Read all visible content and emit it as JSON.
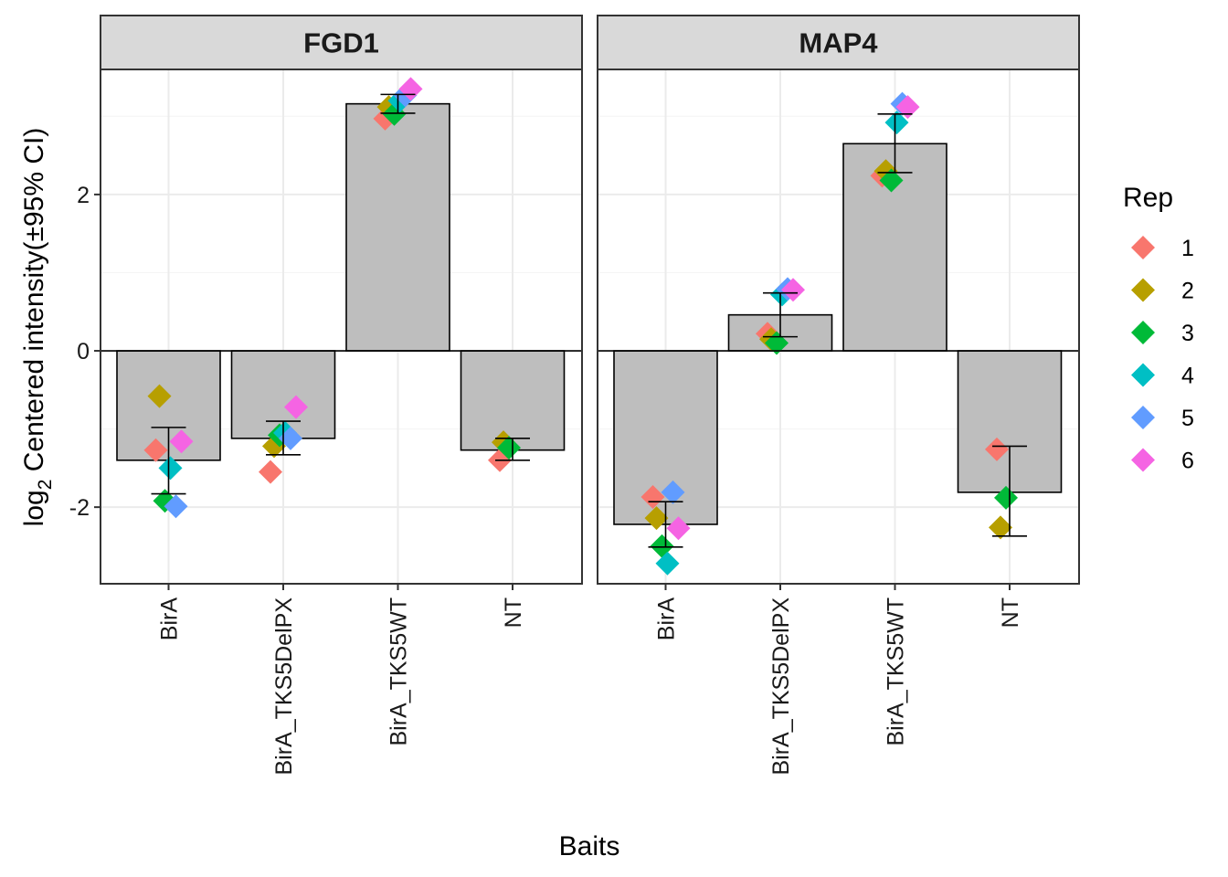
{
  "chart_data": {
    "type": "bar",
    "panels": [
      {
        "title": "FGD1",
        "categories": [
          "BirA",
          "BirA_TKS5DelPX",
          "BirA_TKS5WT",
          "NT"
        ],
        "bar_values": [
          -1.4,
          -1.12,
          3.16,
          -1.27
        ],
        "ci_low": [
          -1.83,
          -1.33,
          3.04,
          -1.4
        ],
        "ci_high": [
          -0.98,
          -0.9,
          3.28,
          -1.12
        ],
        "points": [
          {
            "category": "BirA",
            "rep": "1",
            "y": -1.27
          },
          {
            "category": "BirA",
            "rep": "2",
            "y": -0.58
          },
          {
            "category": "BirA",
            "rep": "3",
            "y": -1.92
          },
          {
            "category": "BirA",
            "rep": "4",
            "y": -1.5
          },
          {
            "category": "BirA",
            "rep": "5",
            "y": -1.99
          },
          {
            "category": "BirA",
            "rep": "6",
            "y": -1.16
          },
          {
            "category": "BirA_TKS5DelPX",
            "rep": "1",
            "y": -1.55
          },
          {
            "category": "BirA_TKS5DelPX",
            "rep": "2",
            "y": -1.22
          },
          {
            "category": "BirA_TKS5DelPX",
            "rep": "3",
            "y": -1.08
          },
          {
            "category": "BirA_TKS5DelPX",
            "rep": "4",
            "y": -1.05
          },
          {
            "category": "BirA_TKS5DelPX",
            "rep": "5",
            "y": -1.12
          },
          {
            "category": "BirA_TKS5DelPX",
            "rep": "6",
            "y": -0.72
          },
          {
            "category": "BirA_TKS5WT",
            "rep": "1",
            "y": 2.97
          },
          {
            "category": "BirA_TKS5WT",
            "rep": "2",
            "y": 3.12
          },
          {
            "category": "BirA_TKS5WT",
            "rep": "3",
            "y": 3.03
          },
          {
            "category": "BirA_TKS5WT",
            "rep": "4",
            "y": 3.2
          },
          {
            "category": "BirA_TKS5WT",
            "rep": "5",
            "y": 3.27
          },
          {
            "category": "BirA_TKS5WT",
            "rep": "6",
            "y": 3.35
          },
          {
            "category": "NT",
            "rep": "1",
            "y": -1.4
          },
          {
            "category": "NT",
            "rep": "2",
            "y": -1.17
          },
          {
            "category": "NT",
            "rep": "3",
            "y": -1.24
          }
        ]
      },
      {
        "title": "MAP4",
        "categories": [
          "BirA",
          "BirA_TKS5DelPX",
          "BirA_TKS5WT",
          "NT"
        ],
        "bar_values": [
          -2.22,
          0.46,
          2.65,
          -1.81
        ],
        "ci_low": [
          -2.51,
          0.18,
          2.28,
          -2.37
        ],
        "ci_high": [
          -1.93,
          0.74,
          3.03,
          -1.22
        ],
        "points": [
          {
            "category": "BirA",
            "rep": "1",
            "y": -1.87
          },
          {
            "category": "BirA",
            "rep": "2",
            "y": -2.14
          },
          {
            "category": "BirA",
            "rep": "3",
            "y": -2.5
          },
          {
            "category": "BirA",
            "rep": "4",
            "y": -2.72
          },
          {
            "category": "BirA",
            "rep": "5",
            "y": -1.81
          },
          {
            "category": "BirA",
            "rep": "6",
            "y": -2.27
          },
          {
            "category": "BirA_TKS5DelPX",
            "rep": "1",
            "y": 0.22
          },
          {
            "category": "BirA_TKS5DelPX",
            "rep": "2",
            "y": 0.15
          },
          {
            "category": "BirA_TKS5DelPX",
            "rep": "3",
            "y": 0.1
          },
          {
            "category": "BirA_TKS5DelPX",
            "rep": "4",
            "y": 0.72
          },
          {
            "category": "BirA_TKS5DelPX",
            "rep": "5",
            "y": 0.79
          },
          {
            "category": "BirA_TKS5DelPX",
            "rep": "6",
            "y": 0.78
          },
          {
            "category": "BirA_TKS5WT",
            "rep": "1",
            "y": 2.24
          },
          {
            "category": "BirA_TKS5WT",
            "rep": "2",
            "y": 2.3
          },
          {
            "category": "BirA_TKS5WT",
            "rep": "3",
            "y": 2.18
          },
          {
            "category": "BirA_TKS5WT",
            "rep": "4",
            "y": 2.92
          },
          {
            "category": "BirA_TKS5WT",
            "rep": "5",
            "y": 3.16
          },
          {
            "category": "BirA_TKS5WT",
            "rep": "6",
            "y": 3.12
          },
          {
            "category": "NT",
            "rep": "1",
            "y": -1.26
          },
          {
            "category": "NT",
            "rep": "2",
            "y": -2.26
          },
          {
            "category": "NT",
            "rep": "3",
            "y": -1.88
          }
        ]
      }
    ],
    "xlabel": "Baits",
    "ylabel_base": "log",
    "ylabel_sub": "2",
    "ylabel_rest": " Centered intensity(±95% CI)",
    "ylim": [
      -2.98,
      3.6
    ],
    "yticks": [
      -2,
      0,
      2
    ],
    "ytick_labels": [
      "-2",
      "0",
      "2"
    ],
    "grid": true,
    "legend": {
      "title": "Rep",
      "placement": "right",
      "entries": [
        {
          "label": "1",
          "color": "#F8766D"
        },
        {
          "label": "2",
          "color": "#B79F00"
        },
        {
          "label": "3",
          "color": "#00BA38"
        },
        {
          "label": "4",
          "color": "#00BFC4"
        },
        {
          "label": "5",
          "color": "#619CFF"
        },
        {
          "label": "6",
          "color": "#F564E3"
        }
      ]
    },
    "colors": {
      "bar_fill": "#BEBEBE",
      "bar_outline": "#000000",
      "strip_fill": "#D9D9D9",
      "panel_border": "#333333",
      "grid_major": "#EBEBEB",
      "grid_minor": "#F5F5F5"
    }
  }
}
